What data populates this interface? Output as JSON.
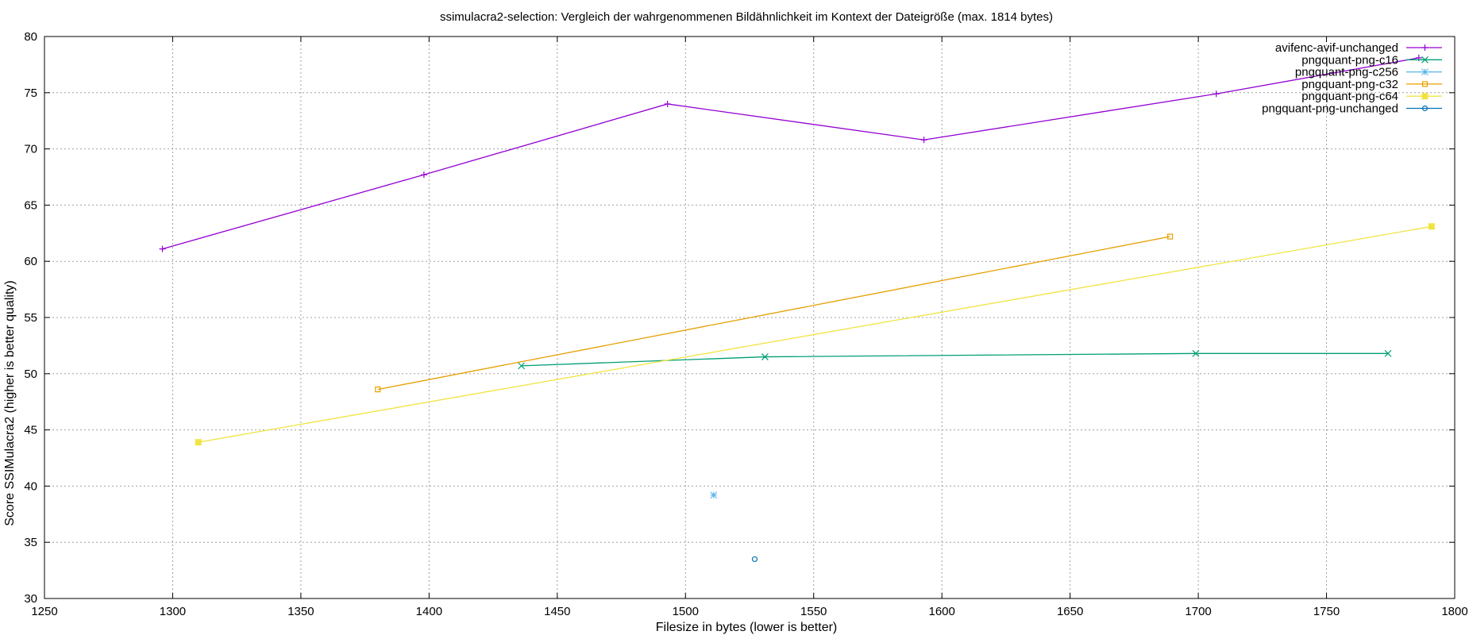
{
  "chart_data": {
    "type": "line",
    "title": "ssimulacra2-selection: Vergleich der wahrgenommenen Bildähnlichkeit im Kontext der Dateigröße (max. 1814 bytes)",
    "xlabel": "Filesize in bytes (lower is better)",
    "ylabel": "Score SSIMulacra2 (higher is better quality)",
    "xlim": [
      1250,
      1800
    ],
    "ylim": [
      30,
      80
    ],
    "xticks": [
      1250,
      1300,
      1350,
      1400,
      1450,
      1500,
      1550,
      1600,
      1650,
      1700,
      1750,
      1800
    ],
    "yticks": [
      30,
      35,
      40,
      45,
      50,
      55,
      60,
      65,
      70,
      75,
      80
    ],
    "grid": true,
    "legend_position": "top-right",
    "series": [
      {
        "name": "avifenc-avif-unchanged",
        "color": "#9400d3",
        "marker": "plus",
        "points": [
          [
            1296,
            61.1
          ],
          [
            1398,
            67.7
          ],
          [
            1493,
            74.0
          ],
          [
            1593,
            70.8
          ],
          [
            1707,
            74.9
          ],
          [
            1786,
            78.1
          ]
        ]
      },
      {
        "name": "pngquant-png-c16",
        "color": "#009e73",
        "marker": "cross",
        "points": [
          [
            1436,
            50.7
          ],
          [
            1531,
            51.5
          ],
          [
            1699,
            51.8
          ],
          [
            1774,
            51.8
          ]
        ]
      },
      {
        "name": "pngquant-png-c256",
        "color": "#56b4e9",
        "marker": "star",
        "points": [
          [
            1511,
            39.2
          ]
        ]
      },
      {
        "name": "pngquant-png-c32",
        "color": "#e69f00",
        "marker": "square-open",
        "points": [
          [
            1380,
            48.6
          ],
          [
            1689,
            62.2
          ]
        ]
      },
      {
        "name": "pngquant-png-c64",
        "color": "#f0e442",
        "marker": "square-filled",
        "points": [
          [
            1310,
            43.9
          ],
          [
            1791,
            63.1
          ]
        ]
      },
      {
        "name": "pngquant-png-unchanged",
        "color": "#0072b2",
        "marker": "circle-open",
        "points": [
          [
            1527,
            33.5
          ]
        ]
      }
    ]
  }
}
